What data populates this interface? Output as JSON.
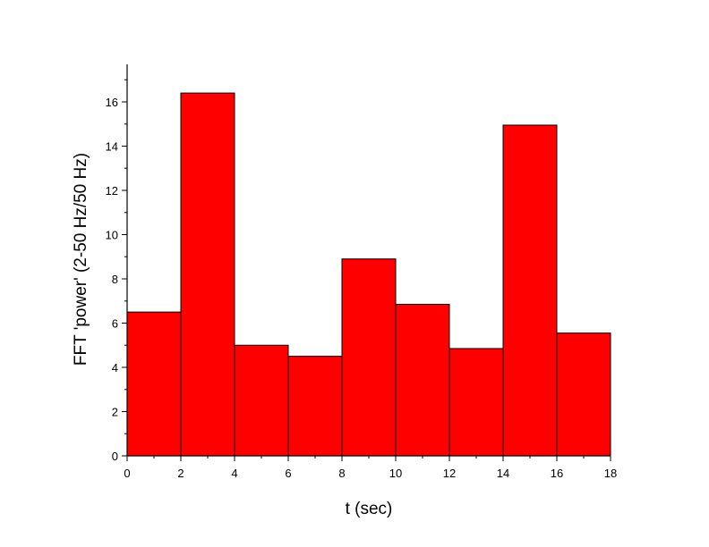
{
  "chart_data": {
    "type": "bar",
    "title": "",
    "xlabel": "t (sec)",
    "ylabel": "FFT 'power' (2-50 Hz/50 Hz)",
    "xlim": [
      0,
      18
    ],
    "ylim": [
      0,
      17.6
    ],
    "x_ticks": [
      0,
      2,
      4,
      6,
      8,
      10,
      12,
      14,
      16,
      18
    ],
    "y_ticks": [
      0,
      2,
      4,
      6,
      8,
      10,
      12,
      14,
      16
    ],
    "bins": [
      [
        0,
        2
      ],
      [
        2,
        4
      ],
      [
        4,
        6
      ],
      [
        6,
        8
      ],
      [
        8,
        10
      ],
      [
        10,
        12
      ],
      [
        12,
        14
      ],
      [
        14,
        16
      ],
      [
        16,
        18
      ]
    ],
    "values": [
      6.5,
      16.4,
      5.0,
      4.5,
      8.9,
      6.85,
      4.85,
      14.95,
      5.55
    ],
    "bar_color": "#ff0000",
    "grid": false,
    "legend": "none"
  }
}
